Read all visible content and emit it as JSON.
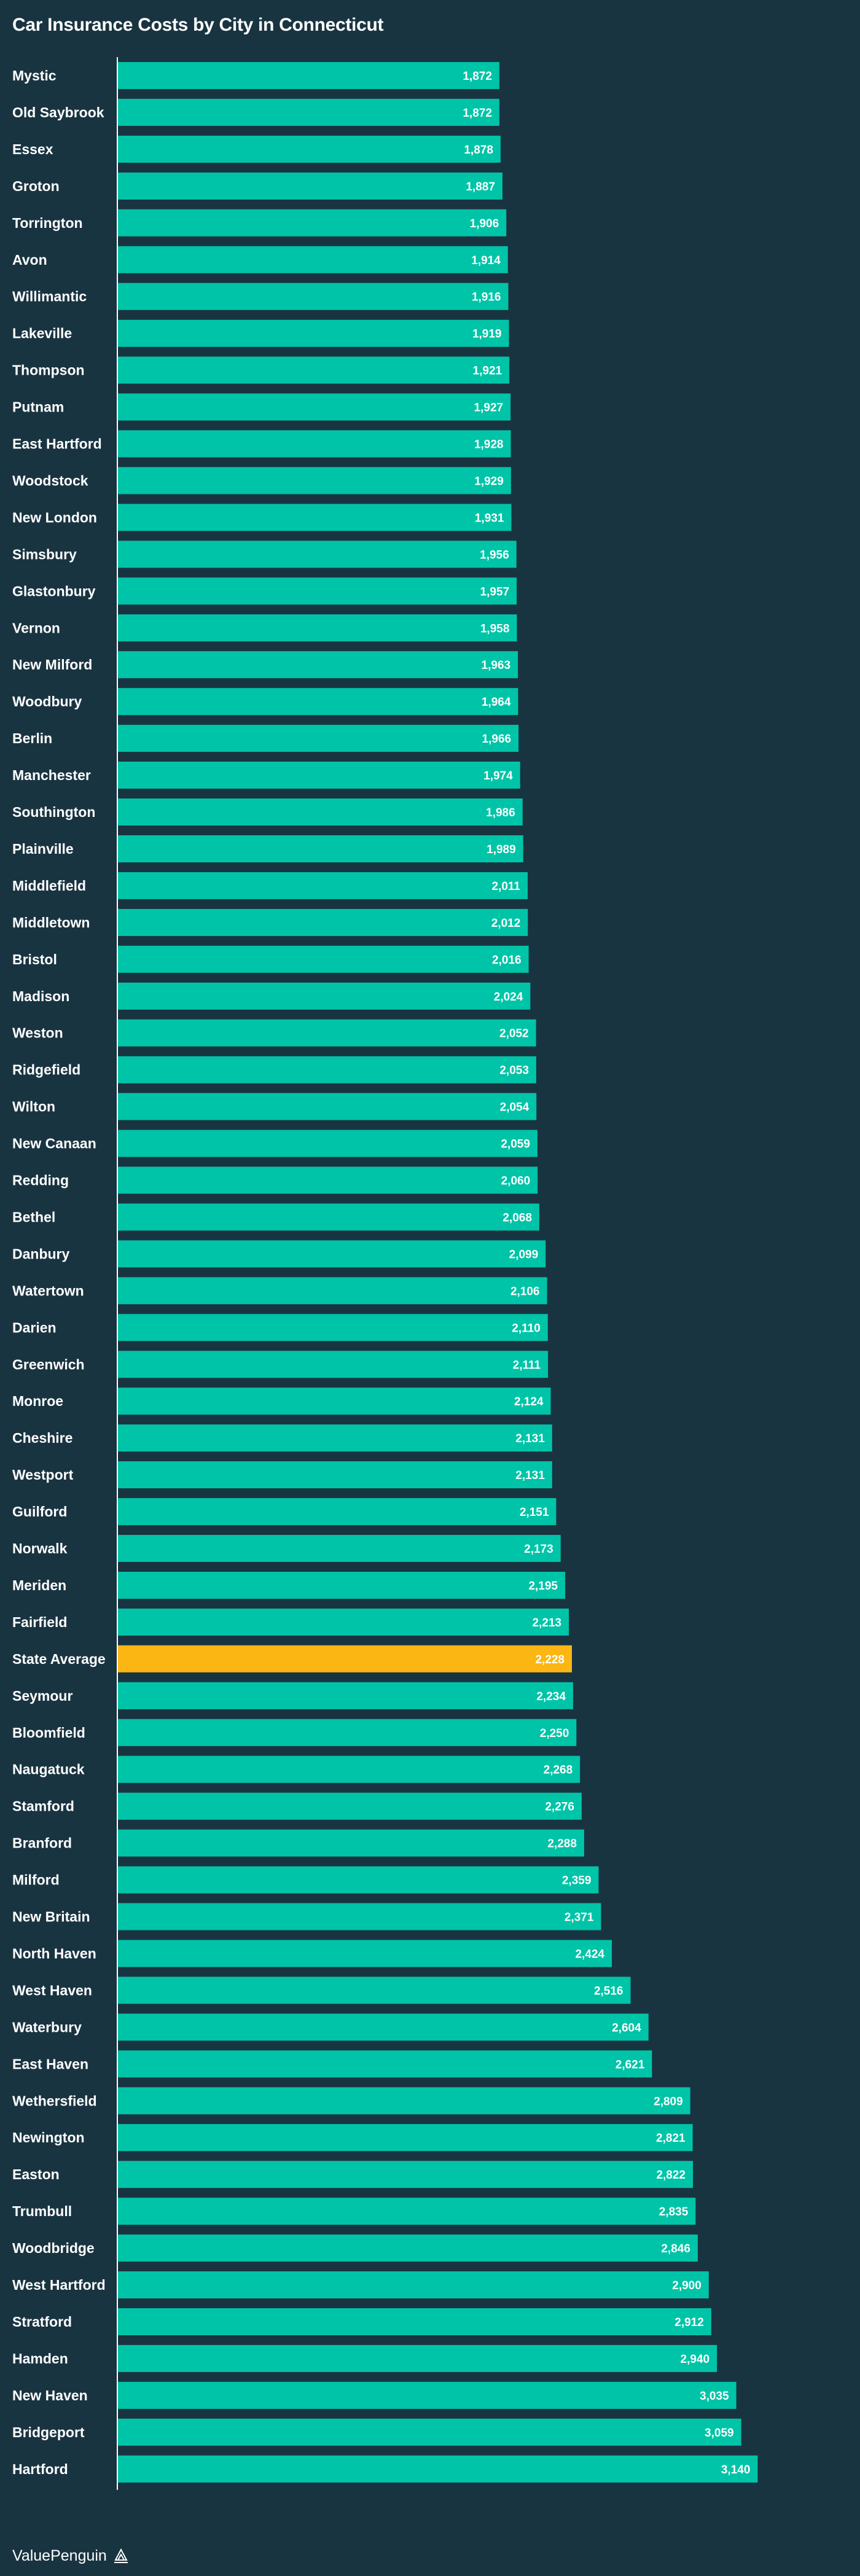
{
  "chart_data": {
    "type": "bar",
    "orientation": "horizontal",
    "title": "Car Insurance Costs by City in Connecticut",
    "xlabel": "",
    "ylabel": "",
    "xlim": [
      0,
      3600
    ],
    "bar_color": "#00c4a7",
    "highlight_color": "#fbb614",
    "highlight_category": "State Average",
    "categories": [
      "Mystic",
      "Old Saybrook",
      "Essex",
      "Groton",
      "Torrington",
      "Avon",
      "Willimantic",
      "Lakeville",
      "Thompson",
      "Putnam",
      "East Hartford",
      "Woodstock",
      "New London",
      "Simsbury",
      "Glastonbury",
      "Vernon",
      "New Milford",
      "Woodbury",
      "Berlin",
      "Manchester",
      "Southington",
      "Plainville",
      "Middlefield",
      "Middletown",
      "Bristol",
      "Madison",
      "Weston",
      "Ridgefield",
      "Wilton",
      "New Canaan",
      "Redding",
      "Bethel",
      "Danbury",
      "Watertown",
      "Darien",
      "Greenwich",
      "Monroe",
      "Cheshire",
      "Westport",
      "Guilford",
      "Norwalk",
      "Meriden",
      "Fairfield",
      "State Average",
      "Seymour",
      "Bloomfield",
      "Naugatuck",
      "Stamford",
      "Branford",
      "Milford",
      "New Britain",
      "North Haven",
      "West Haven",
      "Waterbury",
      "East Haven",
      "Wethersfield",
      "Newington",
      "Easton",
      "Trumbull",
      "Woodbridge",
      "West Hartford",
      "Stratford",
      "Hamden",
      "New Haven",
      "Bridgeport",
      "Hartford"
    ],
    "values": [
      1872,
      1872,
      1878,
      1887,
      1906,
      1914,
      1916,
      1919,
      1921,
      1927,
      1928,
      1929,
      1931,
      1956,
      1957,
      1958,
      1963,
      1964,
      1966,
      1974,
      1986,
      1989,
      2011,
      2012,
      2016,
      2024,
      2052,
      2053,
      2054,
      2059,
      2060,
      2068,
      2099,
      2106,
      2110,
      2111,
      2124,
      2131,
      2131,
      2151,
      2173,
      2195,
      2213,
      2228,
      2234,
      2250,
      2268,
      2276,
      2288,
      2359,
      2371,
      2424,
      2516,
      2604,
      2621,
      2809,
      2821,
      2822,
      2835,
      2846,
      2900,
      2912,
      2940,
      3035,
      3059,
      3140
    ],
    "value_labels": [
      "1,872",
      "1,872",
      "1,878",
      "1,887",
      "1,906",
      "1,914",
      "1,916",
      "1,919",
      "1,921",
      "1,927",
      "1,928",
      "1,929",
      "1,931",
      "1,956",
      "1,957",
      "1,958",
      "1,963",
      "1,964",
      "1,966",
      "1,974",
      "1,986",
      "1,989",
      "2,011",
      "2,012",
      "2,016",
      "2,024",
      "2,052",
      "2,053",
      "2,054",
      "2,059",
      "2,060",
      "2,068",
      "2,099",
      "2,106",
      "2,110",
      "2,111",
      "2,124",
      "2,131",
      "2,131",
      "2,151",
      "2,173",
      "2,195",
      "2,213",
      "2,228",
      "2,234",
      "2,250",
      "2,268",
      "2,276",
      "2,288",
      "2,359",
      "2,371",
      "2,424",
      "2,516",
      "2,604",
      "2,621",
      "2,809",
      "2,821",
      "2,822",
      "2,835",
      "2,846",
      "2,900",
      "2,912",
      "2,940",
      "3,035",
      "3,059",
      "3,140"
    ]
  },
  "footer": {
    "brand": "ValuePenguin",
    "logo_icon": "valuepenguin-logo-icon"
  }
}
